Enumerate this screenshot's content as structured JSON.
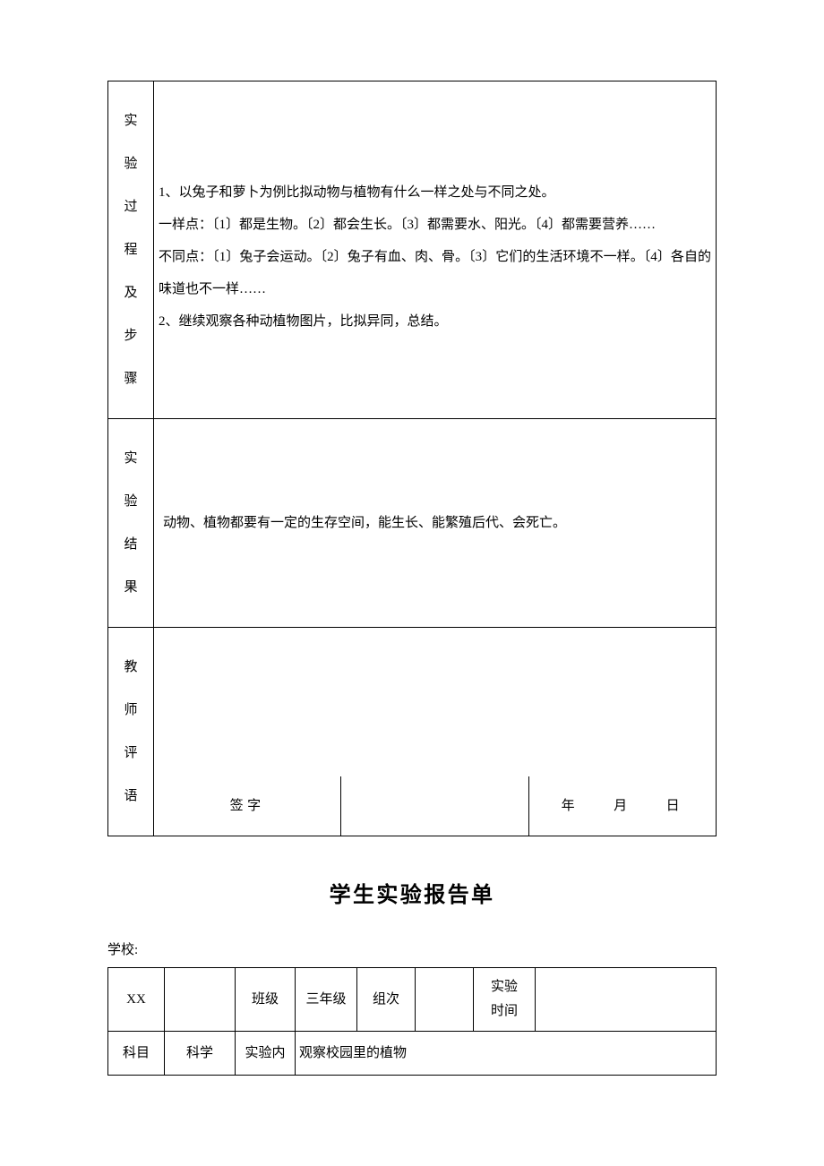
{
  "table1": {
    "row1_label": "实验过程及步骤",
    "row1_content": "1、以兔子和萝卜为例比拟动物与植物有什么一样之处与不同之处。\n一样点：〔1〕都是生物。〔2〕都会生长。〔3〕都需要水、阳光。〔4〕都需要营养……\n不同点：〔1〕兔子会运动。〔2〕兔子有血、肉、骨。〔3〕它们的生活环境不一样。〔4〕各自的味道也不一样……\n2、继续观察各种动植物图片，比拟异同，总结。",
    "row2_label": "实验结果",
    "row2_content": "动物、植物都要有一定的生存空间，能生长、能繁殖后代、会死亡。",
    "row3_label": "教师评语",
    "sign_label": "签字",
    "date_text": "年　　月　　日"
  },
  "title": "学生实验报告单",
  "school_label": "学校:",
  "table2": {
    "r1c1": "XX",
    "r1c3": "班级",
    "r1c4": "三年级",
    "r1c5": "组次",
    "r1c7": "实验时间",
    "r2c1": "科目",
    "r2c2": "科学",
    "r2c3": "实验内",
    "r2c4": "观察校园里的植物"
  }
}
